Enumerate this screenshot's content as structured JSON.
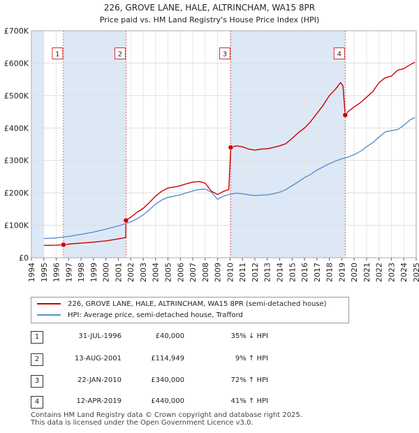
{
  "chart_data": {
    "type": "line",
    "title": "226, GROVE LANE, HALE, ALTRINCHAM, WA15 8PR",
    "subtitle": "Price paid vs. HM Land Registry's House Price Index (HPI)",
    "x_ticks": [
      "1994",
      "1995",
      "1996",
      "1997",
      "1998",
      "1999",
      "2000",
      "2001",
      "2002",
      "2003",
      "2004",
      "2005",
      "2006",
      "2007",
      "2008",
      "2009",
      "2010",
      "2011",
      "2012",
      "2013",
      "2014",
      "2015",
      "2016",
      "2017",
      "2018",
      "2019",
      "2020",
      "2021",
      "2022",
      "2023",
      "2024",
      "2025"
    ],
    "y_ticks": [
      "£0",
      "£100K",
      "£200K",
      "£300K",
      "£400K",
      "£500K",
      "£600K",
      "£700K"
    ],
    "xlim": [
      1994,
      2025
    ],
    "ylim": [
      0,
      700000
    ],
    "colors": {
      "property": "#cc0000",
      "hpi": "#5b8fd0",
      "shade": "#dde8f6",
      "vline": "#e06060"
    },
    "series": [
      {
        "name": "226, GROVE LANE, HALE, ALTRINCHAM, WA15 8PR (semi-detached house)",
        "color": "#cc0000",
        "x": [
          1995.0,
          1996.0,
          1996.58,
          1997.0,
          1998.0,
          1999.0,
          2000.0,
          2001.0,
          2001.6,
          2001.62,
          2002.0,
          2002.5,
          2003.0,
          2003.5,
          2004.0,
          2004.5,
          2005.0,
          2005.5,
          2006.0,
          2006.5,
          2007.0,
          2007.5,
          2008.0,
          2008.5,
          2009.0,
          2009.5,
          2009.9,
          2010.06,
          2010.5,
          2011.0,
          2011.5,
          2012.0,
          2012.5,
          2013.0,
          2013.5,
          2014.0,
          2014.5,
          2015.0,
          2015.5,
          2016.0,
          2016.5,
          2017.0,
          2017.5,
          2018.0,
          2018.5,
          2018.9,
          2019.1,
          2019.28,
          2019.5,
          2020.0,
          2020.5,
          2021.0,
          2021.5,
          2022.0,
          2022.5,
          2023.0,
          2023.5,
          2024.0,
          2024.5,
          2024.9
        ],
        "y": [
          38000,
          38500,
          40000,
          42000,
          45000,
          48000,
          52000,
          58000,
          62000,
          114949,
          125000,
          140000,
          152000,
          170000,
          190000,
          205000,
          215000,
          218000,
          222000,
          228000,
          233000,
          235000,
          230000,
          205000,
          195000,
          205000,
          210000,
          340000,
          345000,
          342000,
          335000,
          332000,
          335000,
          336000,
          340000,
          345000,
          352000,
          368000,
          385000,
          400000,
          420000,
          445000,
          470000,
          500000,
          520000,
          540000,
          530000,
          440000,
          450000,
          465000,
          478000,
          495000,
          512000,
          540000,
          555000,
          560000,
          578000,
          583000,
          595000,
          603000
        ]
      },
      {
        "name": "HPI: Average price, semi-detached house, Trafford",
        "color": "#5b8fd0",
        "x": [
          1995.0,
          1996.0,
          1997.0,
          1998.0,
          1999.0,
          2000.0,
          2001.0,
          2002.0,
          2002.5,
          2003.0,
          2003.5,
          2004.0,
          2004.5,
          2005.0,
          2005.5,
          2006.0,
          2006.5,
          2007.0,
          2007.5,
          2008.0,
          2008.5,
          2009.0,
          2009.5,
          2010.0,
          2010.5,
          2011.0,
          2011.5,
          2012.0,
          2012.5,
          2013.0,
          2013.5,
          2014.0,
          2014.5,
          2015.0,
          2015.5,
          2016.0,
          2016.5,
          2017.0,
          2017.5,
          2018.0,
          2018.5,
          2019.0,
          2019.5,
          2020.0,
          2020.5,
          2021.0,
          2021.5,
          2022.0,
          2022.5,
          2023.0,
          2023.5,
          2024.0,
          2024.5,
          2024.9
        ],
        "y": [
          59000,
          61000,
          66000,
          72000,
          79000,
          88000,
          98000,
          110000,
          120000,
          132000,
          148000,
          165000,
          178000,
          186000,
          190000,
          194000,
          200000,
          206000,
          210000,
          212000,
          202000,
          180000,
          190000,
          196000,
          199000,
          197000,
          194000,
          192000,
          193000,
          194000,
          197000,
          202000,
          210000,
          222000,
          234000,
          247000,
          257000,
          270000,
          280000,
          290000,
          298000,
          305000,
          310000,
          318000,
          328000,
          342000,
          355000,
          372000,
          388000,
          392000,
          395000,
          408000,
          425000,
          432000
        ]
      }
    ],
    "sales": [
      {
        "num": "1",
        "date": "31-JUL-1996",
        "price": "£40,000",
        "hpi": "35% ↓ HPI",
        "x": 1996.58,
        "y": 40000
      },
      {
        "num": "2",
        "date": "13-AUG-2001",
        "price": "£114,949",
        "hpi": "9% ↑ HPI",
        "x": 2001.62,
        "y": 114949
      },
      {
        "num": "3",
        "date": "22-JAN-2010",
        "price": "£340,000",
        "hpi": "72% ↑ HPI",
        "x": 2010.06,
        "y": 340000
      },
      {
        "num": "4",
        "date": "12-APR-2019",
        "price": "£440,000",
        "hpi": "41% ↑ HPI",
        "x": 2019.28,
        "y": 440000
      }
    ]
  },
  "legend": {
    "property": "226, GROVE LANE, HALE, ALTRINCHAM, WA15 8PR (semi-detached house)",
    "hpi": "HPI: Average price, semi-detached house, Trafford"
  },
  "footer": {
    "line1": "Contains HM Land Registry data © Crown copyright and database right 2025.",
    "line2": "This data is licensed under the Open Government Licence v3.0."
  }
}
